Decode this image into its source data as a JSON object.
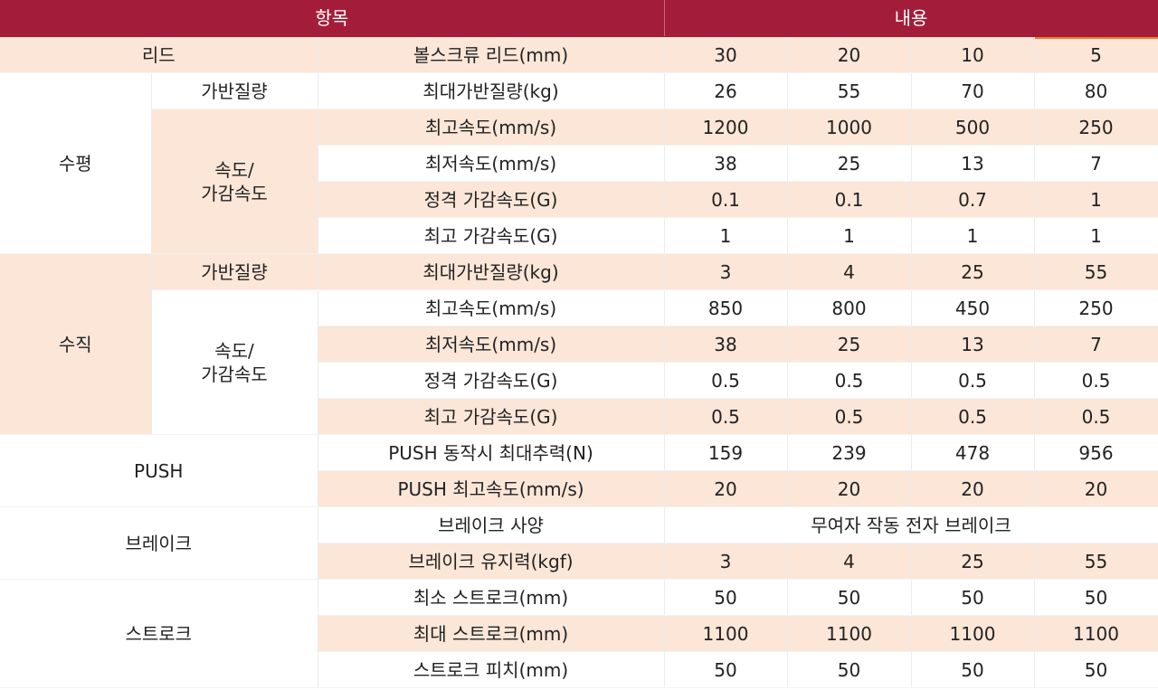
{
  "headers": {
    "item": "항목",
    "content": "내용"
  },
  "lead": {
    "group": "리드",
    "label": "볼스크류 리드(mm)",
    "values": [
      "30",
      "20",
      "10",
      "5"
    ]
  },
  "horizontal": {
    "group": "수평",
    "payload": {
      "sub": "가반질량",
      "label": "최대가반질량(kg)",
      "values": [
        "26",
        "55",
        "70",
        "80"
      ]
    },
    "speed_sub": "속도/\n가감속도",
    "max_speed": {
      "label": "최고속도(mm/s)",
      "values": [
        "1200",
        "1000",
        "500",
        "250"
      ]
    },
    "min_speed": {
      "label": "최저속도(mm/s)",
      "values": [
        "38",
        "25",
        "13",
        "7"
      ]
    },
    "rated_accel": {
      "label": "정격 가감속도(G)",
      "values": [
        "0.1",
        "0.1",
        "0.7",
        "1"
      ]
    },
    "max_accel": {
      "label": "최고 가감속도(G)",
      "values": [
        "1",
        "1",
        "1",
        "1"
      ]
    }
  },
  "vertical": {
    "group": "수직",
    "payload": {
      "sub": "가반질량",
      "label": "최대가반질량(kg)",
      "values": [
        "3",
        "4",
        "25",
        "55"
      ]
    },
    "speed_sub": "속도/\n가감속도",
    "max_speed": {
      "label": "최고속도(mm/s)",
      "values": [
        "850",
        "800",
        "450",
        "250"
      ]
    },
    "min_speed": {
      "label": "최저속도(mm/s)",
      "values": [
        "38",
        "25",
        "13",
        "7"
      ]
    },
    "rated_accel": {
      "label": "정격 가감속도(G)",
      "values": [
        "0.5",
        "0.5",
        "0.5",
        "0.5"
      ]
    },
    "max_accel": {
      "label": "최고 가감속도(G)",
      "values": [
        "0.5",
        "0.5",
        "0.5",
        "0.5"
      ]
    }
  },
  "push": {
    "group": "PUSH",
    "max_thrust": {
      "label": "PUSH 동작시 최대추력(N)",
      "values": [
        "159",
        "239",
        "478",
        "956"
      ]
    },
    "max_speed": {
      "label": "PUSH 최고속도(mm/s)",
      "values": [
        "20",
        "20",
        "20",
        "20"
      ]
    }
  },
  "brake": {
    "group": "브레이크",
    "spec": {
      "label": "브레이크 사양",
      "value": "무여자 작동 전자 브레이크"
    },
    "holding": {
      "label": "브레이크 유지력(kgf)",
      "values": [
        "3",
        "4",
        "25",
        "55"
      ]
    }
  },
  "stroke": {
    "group": "스트로크",
    "min": {
      "label": "최소 스트로크(mm)",
      "values": [
        "50",
        "50",
        "50",
        "50"
      ]
    },
    "max": {
      "label": "최대 스트로크(mm)",
      "values": [
        "1100",
        "1100",
        "1100",
        "1100"
      ]
    },
    "pitch": {
      "label": "스트로크 피치(mm)",
      "values": [
        "50",
        "50",
        "50",
        "50"
      ]
    }
  },
  "colors": {
    "header_bg": "#a31d3a",
    "header_text": "#ffffff",
    "row_pink": "#fbe6d8",
    "accent_orange": "#f07a2c"
  }
}
